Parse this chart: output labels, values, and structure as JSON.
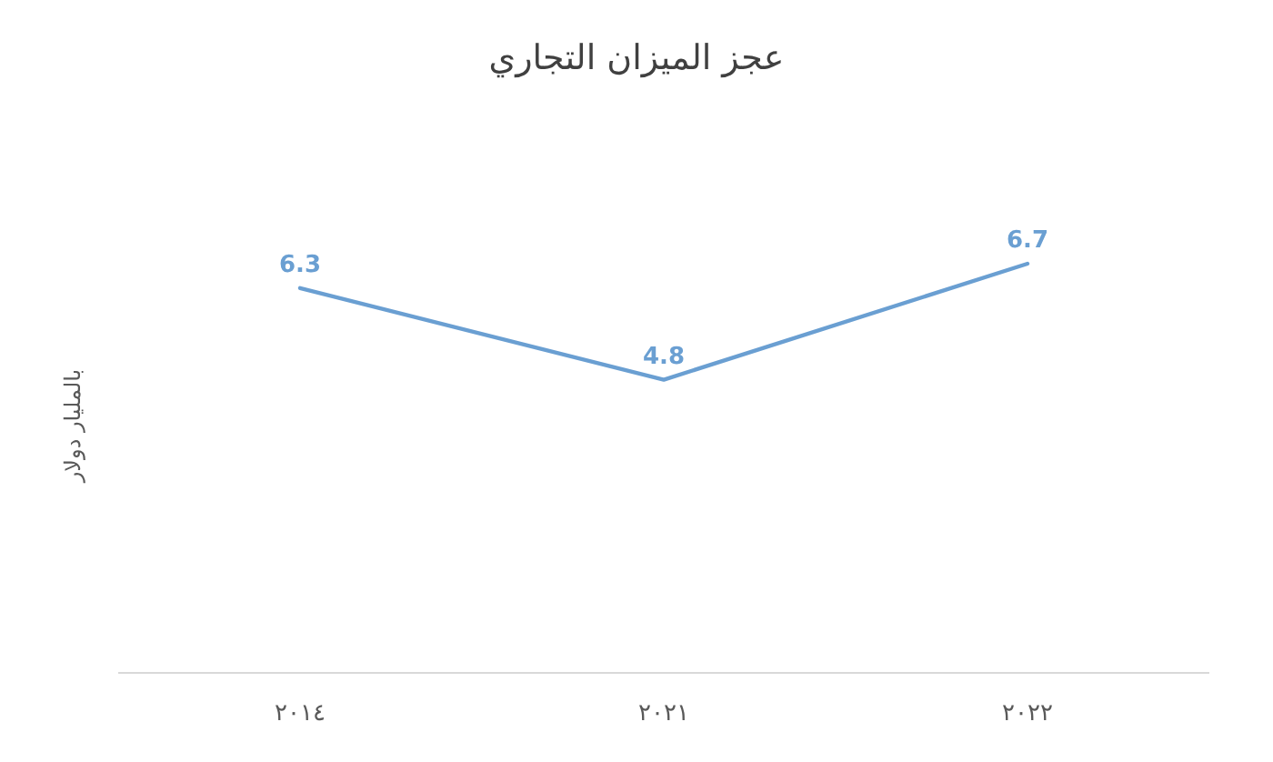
{
  "chart_data": {
    "type": "line",
    "title": "عجز الميزان التجاري",
    "ylabel": "بالمليار دولار",
    "categories": [
      "٢٠١٤",
      "٢٠٢١",
      "٢٠٢٢"
    ],
    "values": [
      6.3,
      4.8,
      6.7
    ],
    "color": "#6a9fd2",
    "data_labels": true,
    "marker": "none",
    "line_style": "solid"
  }
}
